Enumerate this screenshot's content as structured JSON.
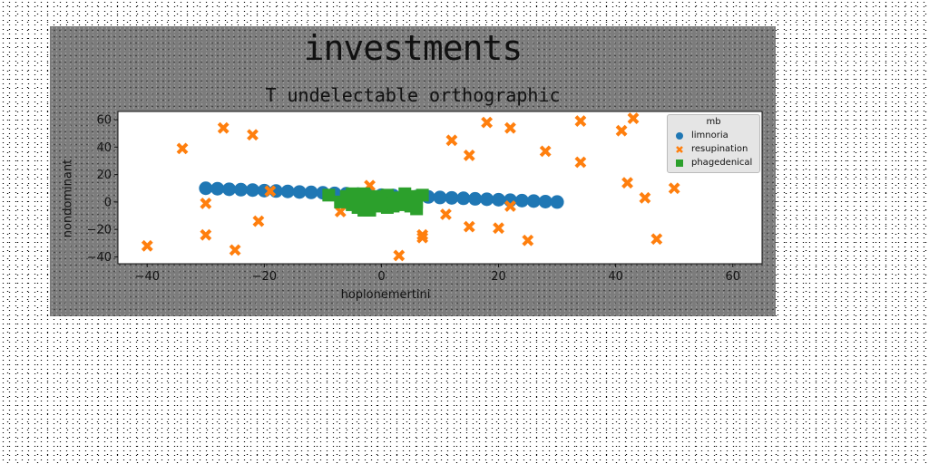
{
  "figure": {
    "suptitle": "investments"
  },
  "chart_data": {
    "type": "scatter",
    "title": "T undelectable orthographic",
    "xlabel": "hoplonemertini",
    "ylabel": "nondominant",
    "xlim": [
      -45,
      65
    ],
    "ylim": [
      -45,
      66
    ],
    "xticks": [
      -40,
      -20,
      0,
      20,
      40,
      60
    ],
    "yticks": [
      -40,
      -20,
      0,
      20,
      40,
      60
    ],
    "grid": false,
    "legend": {
      "title": "mb",
      "placement": "top-right"
    },
    "series": [
      {
        "name": "limnoria",
        "marker": "circle",
        "color": "#1f77b4",
        "x": [
          -30,
          -28,
          -26,
          -24,
          -22,
          -20,
          -18,
          -16,
          -14,
          -12,
          -10,
          -8,
          -6,
          -4,
          -2,
          0,
          2,
          4,
          6,
          8,
          10,
          12,
          14,
          16,
          18,
          20,
          22,
          24,
          26,
          28,
          30
        ],
        "y": [
          10,
          9.7,
          9.3,
          9,
          8.7,
          8.3,
          8,
          7.7,
          7.3,
          7,
          6.7,
          6.3,
          6,
          5.7,
          5.3,
          5,
          4.7,
          4.3,
          4,
          3.7,
          3.3,
          3,
          2.7,
          2.3,
          2,
          1.7,
          1.3,
          1,
          0.7,
          0.3,
          0
        ]
      },
      {
        "name": "resupination",
        "marker": "x",
        "color": "#ff7f0e",
        "x": [
          -40,
          -34,
          -30,
          -30,
          -27,
          -25,
          -22,
          -21,
          -19,
          -7,
          -2,
          3,
          7,
          7,
          11,
          12,
          15,
          15,
          18,
          20,
          22,
          22,
          25,
          28,
          34,
          34,
          41,
          42,
          43,
          45,
          47,
          50
        ],
        "y": [
          -32,
          39,
          -1,
          -24,
          54,
          -35,
          49,
          -14,
          8,
          -7,
          12,
          -39,
          -24,
          -26,
          -9,
          45,
          34,
          -18,
          58,
          -19,
          54,
          -3,
          -28,
          37,
          59,
          29,
          52,
          14,
          61,
          3,
          -27,
          10
        ]
      },
      {
        "name": "phagedenical",
        "marker": "square",
        "color": "#2ca02c",
        "x": [
          -9,
          -7,
          -5,
          -4,
          -3,
          -2,
          -1,
          0,
          1,
          2,
          3,
          4,
          5,
          6,
          7,
          -5,
          -3,
          -1,
          1,
          3,
          5,
          -4,
          -2,
          0,
          2,
          4,
          6,
          -6,
          -3,
          0
        ],
        "y": [
          5,
          0,
          6,
          -4,
          2,
          -6,
          4,
          -1,
          5,
          -3,
          3,
          -2,
          4,
          -5,
          5,
          -2,
          -6,
          1,
          -4,
          0,
          -3,
          3,
          -5,
          2,
          -1,
          6,
          0,
          4,
          6,
          -3
        ]
      }
    ]
  }
}
